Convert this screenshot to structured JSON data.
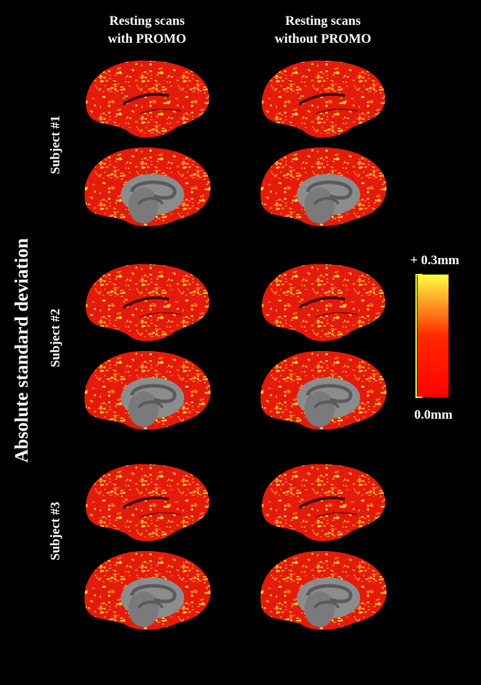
{
  "columns": [
    [
      "Resting scans",
      "with PROMO"
    ],
    [
      "Resting scans",
      "without PROMO"
    ]
  ],
  "rows": [
    "Subject  #1",
    "Subject  #2",
    "Subject  #3"
  ],
  "side_label": "Absolute  standard deviation",
  "colorbar": {
    "max_label": "+ 0.3mm",
    "min_label": "0.0mm"
  }
}
